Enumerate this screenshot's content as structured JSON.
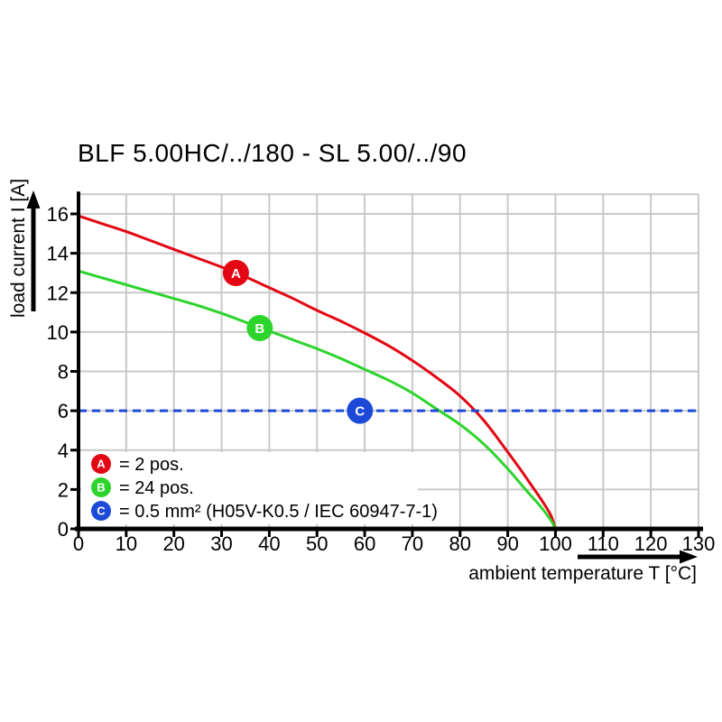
{
  "title": "BLF 5.00HC/../180 - SL 5.00/../90",
  "chart_data": {
    "type": "line",
    "title": "BLF 5.00HC/../180 - SL 5.00/../90",
    "xlabel": "ambient temperature T [°C]",
    "ylabel": "load current I [A]",
    "xlim": [
      0,
      130
    ],
    "ylim": [
      0,
      17
    ],
    "xticks": [
      0,
      10,
      20,
      30,
      40,
      50,
      60,
      70,
      80,
      90,
      100,
      110,
      120,
      130
    ],
    "yticks": [
      0,
      2,
      4,
      6,
      8,
      10,
      12,
      14,
      16
    ],
    "grid": true,
    "legend_position": "bottom-left",
    "series": [
      {
        "id": "A",
        "legend": "= 2 pos.",
        "color": "#e30613",
        "line_style": "solid",
        "marker": {
          "x": 33,
          "y": 13.0,
          "label": "A"
        },
        "points": [
          [
            0,
            15.9
          ],
          [
            5,
            15.5
          ],
          [
            10,
            15.1
          ],
          [
            15,
            14.65
          ],
          [
            20,
            14.2
          ],
          [
            25,
            13.75
          ],
          [
            30,
            13.3
          ],
          [
            35,
            12.8
          ],
          [
            40,
            12.25
          ],
          [
            45,
            11.7
          ],
          [
            50,
            11.1
          ],
          [
            55,
            10.55
          ],
          [
            60,
            9.95
          ],
          [
            65,
            9.3
          ],
          [
            70,
            8.55
          ],
          [
            75,
            7.7
          ],
          [
            80,
            6.75
          ],
          [
            85,
            5.5
          ],
          [
            90,
            3.9
          ],
          [
            93,
            2.9
          ],
          [
            95,
            2.2
          ],
          [
            97,
            1.5
          ],
          [
            99,
            0.7
          ],
          [
            100,
            0
          ]
        ]
      },
      {
        "id": "B",
        "legend": "= 24 pos.",
        "color": "#2cd42c",
        "line_style": "solid",
        "marker": {
          "x": 38,
          "y": 10.2,
          "label": "B"
        },
        "points": [
          [
            0,
            13.1
          ],
          [
            5,
            12.75
          ],
          [
            10,
            12.4
          ],
          [
            15,
            12.05
          ],
          [
            20,
            11.7
          ],
          [
            25,
            11.35
          ],
          [
            30,
            10.95
          ],
          [
            35,
            10.5
          ],
          [
            40,
            10.05
          ],
          [
            45,
            9.6
          ],
          [
            50,
            9.15
          ],
          [
            55,
            8.65
          ],
          [
            60,
            8.1
          ],
          [
            65,
            7.55
          ],
          [
            70,
            6.9
          ],
          [
            75,
            6.1
          ],
          [
            80,
            5.3
          ],
          [
            85,
            4.3
          ],
          [
            90,
            3.05
          ],
          [
            93,
            2.2
          ],
          [
            95,
            1.65
          ],
          [
            97,
            1.1
          ],
          [
            99,
            0.45
          ],
          [
            100,
            0
          ]
        ]
      },
      {
        "id": "C",
        "legend": "= 0.5 mm² (H05V-K0.5 / IEC 60947-7-1)",
        "color": "#1c49d8",
        "line_style": "dashed",
        "marker": {
          "x": 59,
          "y": 6.0,
          "label": "C"
        },
        "points": [
          [
            0,
            6
          ],
          [
            130,
            6
          ]
        ]
      }
    ]
  },
  "colors": {
    "background": "#ffffff",
    "grid": "#c9c9c9",
    "axis": "#000000",
    "legend_background": "#ffffff",
    "marker_letter": "#ffffff"
  }
}
